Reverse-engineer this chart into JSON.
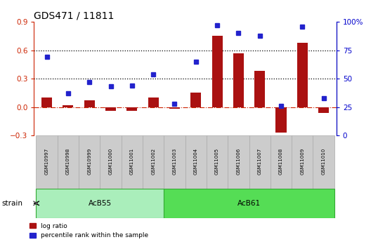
{
  "title": "GDS471 / 11811",
  "samples": [
    "GSM10997",
    "GSM10998",
    "GSM10999",
    "GSM11000",
    "GSM11001",
    "GSM11002",
    "GSM11003",
    "GSM11004",
    "GSM11005",
    "GSM11006",
    "GSM11007",
    "GSM11008",
    "GSM11009",
    "GSM11010"
  ],
  "log_ratio": [
    0.1,
    0.02,
    0.07,
    -0.04,
    -0.04,
    0.1,
    -0.02,
    0.15,
    0.75,
    0.57,
    0.38,
    -0.27,
    0.68,
    -0.06
  ],
  "percentile_rank": [
    69,
    37,
    47,
    43,
    44,
    54,
    28,
    65,
    97,
    90,
    88,
    26,
    96,
    33
  ],
  "groups": [
    {
      "label": "AcB55",
      "start": 0,
      "end": 5
    },
    {
      "label": "AcB61",
      "start": 6,
      "end": 13
    }
  ],
  "bar_color": "#aa1111",
  "dot_color": "#2222cc",
  "left_ylim": [
    -0.3,
    0.9
  ],
  "right_ylim": [
    0,
    100
  ],
  "left_yticks": [
    -0.3,
    0.0,
    0.3,
    0.6,
    0.9
  ],
  "right_yticks": [
    0,
    25,
    50,
    75,
    100
  ],
  "hlines": [
    0.3,
    0.6
  ],
  "background_color": "#ffffff",
  "title_fontsize": 10,
  "axis_label_color_left": "#cc2200",
  "axis_label_color_right": "#0000cc",
  "group_colors": [
    "#aaeebb",
    "#55dd55"
  ],
  "group_border_color": "#33aa33",
  "sample_cell_color": "#cccccc",
  "sample_cell_border": "#aaaaaa",
  "strain_label": "strain"
}
